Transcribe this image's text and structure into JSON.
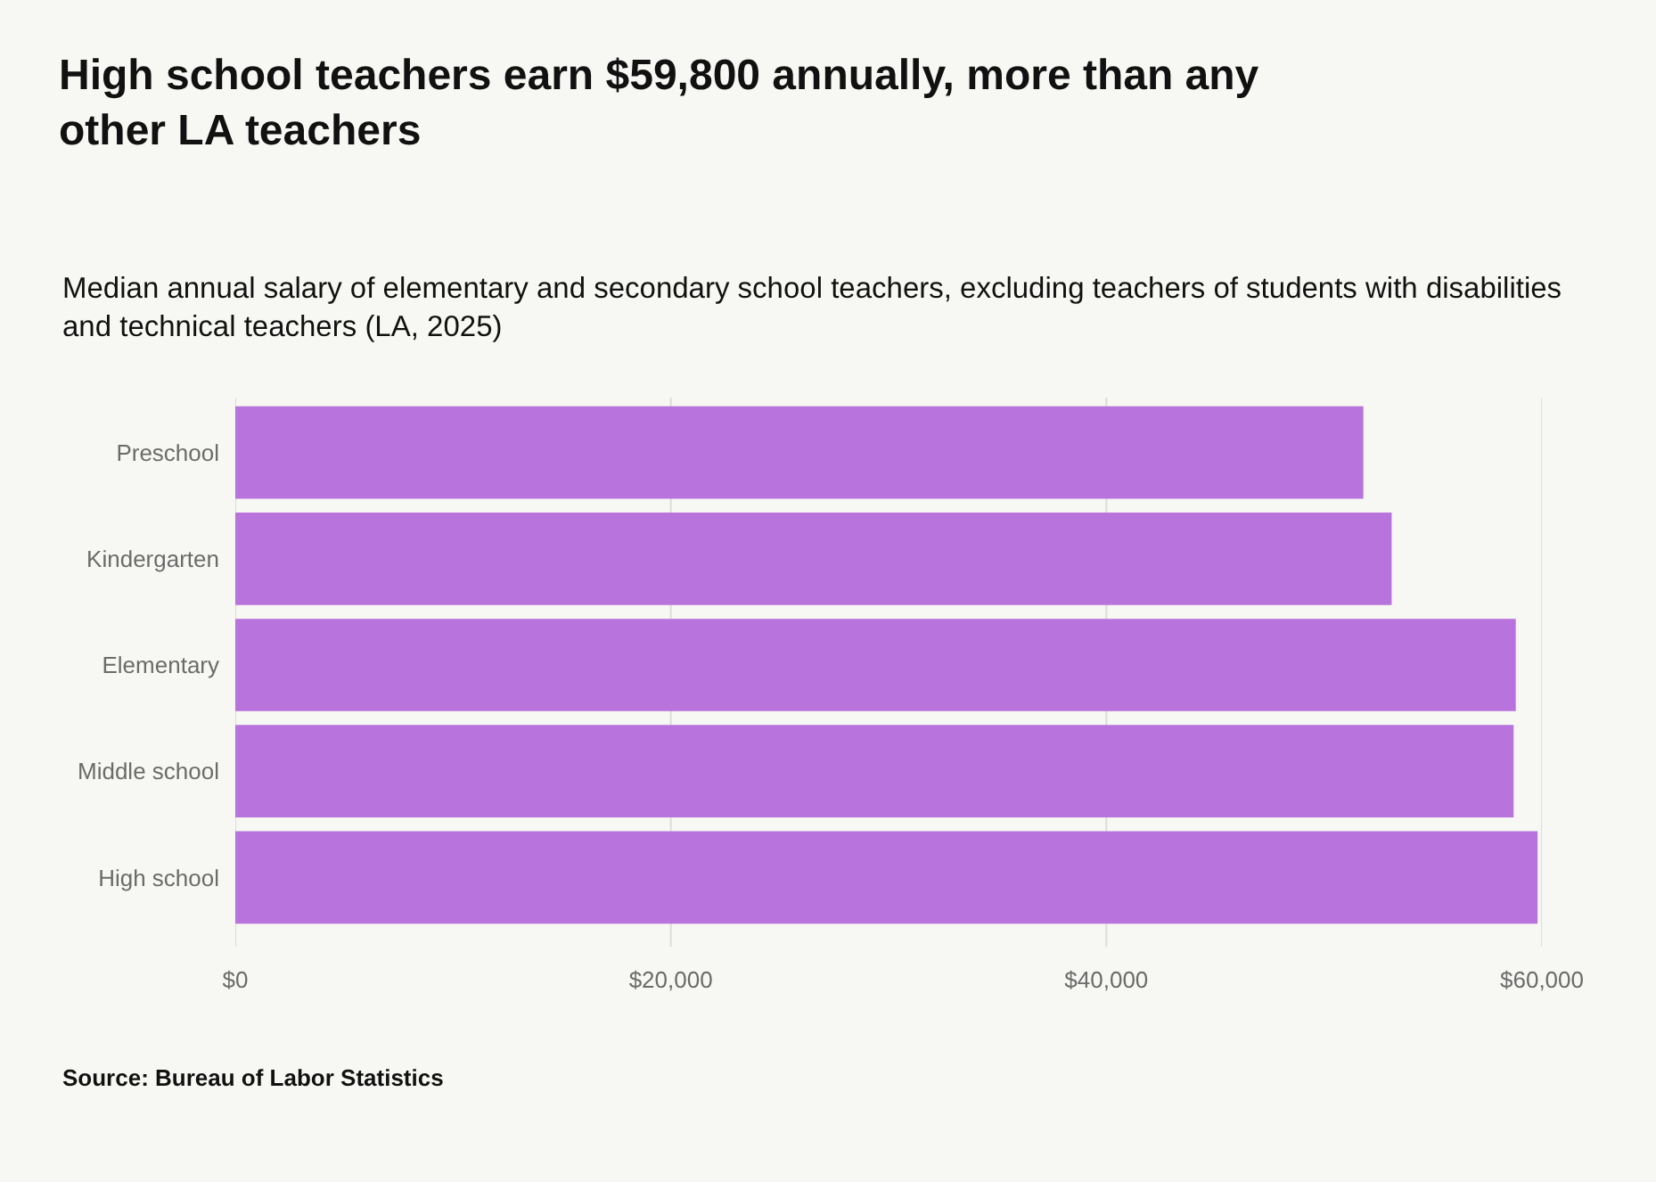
{
  "chart_data": {
    "type": "bar",
    "orientation": "horizontal",
    "title": "High school teachers earn $59,800 annually, more than any other LA teachers",
    "subtitle": "Median annual salary of elementary and secondary school teachers, excluding teachers of students with disabilities and technical teachers (LA, 2025)",
    "categories": [
      "Preschool",
      "Kindergarten",
      "Elementary",
      "Middle school",
      "High school"
    ],
    "values": [
      51800,
      53100,
      58800,
      58700,
      59800
    ],
    "color": "#b873dc",
    "xlim": [
      0,
      60000
    ],
    "xticks": [
      {
        "value": 0,
        "label": "$0"
      },
      {
        "value": 20000,
        "label": "$20,000"
      },
      {
        "value": 40000,
        "label": "$40,000"
      },
      {
        "value": 60000,
        "label": "$60,000"
      }
    ],
    "grid": "x",
    "annotations": [
      "Source: Bureau of Labor Statistics"
    ]
  }
}
